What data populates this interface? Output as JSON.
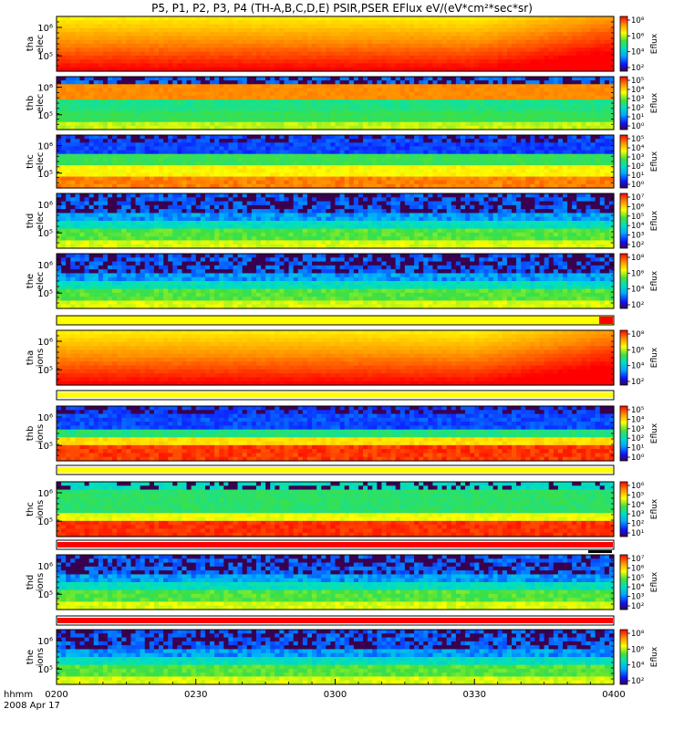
{
  "chart_data": {
    "type": "heatmap",
    "title": "P5, P1, P2, P3, P4 (TH-A,B,C,D,E) PSIR,PSER EFlux eV/(eV*cm²*sec*sr)",
    "x_ticks": [
      "0200",
      "0230",
      "0300",
      "0330",
      "0400"
    ],
    "x_label": "hhmm",
    "date_label": "2008 Apr 17",
    "colorbar_label": "Eflux",
    "panels": [
      {
        "id": "tha-elec",
        "label": [
          "tha",
          "elec"
        ],
        "y_ticks": [
          "10⁶",
          "10⁵"
        ],
        "cbar_ticks": [
          "10⁸",
          "10⁶",
          "10⁴",
          "10²"
        ],
        "style": "smooth",
        "strip": null
      },
      {
        "id": "thb-elec",
        "label": [
          "thb",
          "elec"
        ],
        "y_ticks": [
          "10⁶",
          "10⁵"
        ],
        "cbar_ticks": [
          "10⁵",
          "10⁴",
          "10³",
          "10²",
          "10¹",
          "10⁰"
        ],
        "style": "banded-orange",
        "strip": null
      },
      {
        "id": "thc-elec",
        "label": [
          "thc",
          "elec"
        ],
        "y_ticks": [
          "10⁶",
          "10⁵"
        ],
        "cbar_ticks": [
          "10⁵",
          "10⁴",
          "10³",
          "10²",
          "10¹",
          "10⁰"
        ],
        "style": "banded-blue",
        "strip": null
      },
      {
        "id": "thd-elec",
        "label": [
          "thd",
          "elec"
        ],
        "y_ticks": [
          "10⁶",
          "10⁵"
        ],
        "cbar_ticks": [
          "10⁷",
          "10⁶",
          "10⁵",
          "10⁴",
          "10³",
          "10²"
        ],
        "style": "noisy",
        "strip": null
      },
      {
        "id": "the-elec",
        "label": [
          "the",
          "elec"
        ],
        "y_ticks": [
          "10⁶",
          "10⁵"
        ],
        "cbar_ticks": [
          "10⁸",
          "10⁶",
          "10⁴",
          "10²"
        ],
        "style": "noisy",
        "strip": "yellow-red-end"
      },
      {
        "id": "tha-ions",
        "label": [
          "tha",
          "ions"
        ],
        "y_ticks": [
          "10⁶",
          "10⁵"
        ],
        "cbar_ticks": [
          "10⁸",
          "10⁶",
          "10⁴",
          "10²"
        ],
        "style": "smooth",
        "strip": "yellow"
      },
      {
        "id": "thb-ions",
        "label": [
          "thb",
          "ions"
        ],
        "y_ticks": [
          "10⁶",
          "10⁵"
        ],
        "cbar_ticks": [
          "10⁵",
          "10⁴",
          "10³",
          "10²",
          "10¹",
          "10⁰"
        ],
        "style": "ions-b",
        "strip": "yellow"
      },
      {
        "id": "thc-ions",
        "label": [
          "thc",
          "ions"
        ],
        "y_ticks": [
          "10⁶",
          "10⁵"
        ],
        "cbar_ticks": [
          "10⁶",
          "10⁵",
          "10⁴",
          "10³",
          "10²",
          "10¹"
        ],
        "style": "ions-c",
        "strip": "red"
      },
      {
        "id": "thd-ions",
        "label": [
          "thd",
          "ions"
        ],
        "y_ticks": [
          "10⁶",
          "10⁵"
        ],
        "cbar_ticks": [
          "10⁷",
          "10⁶",
          "10⁵",
          "10⁴",
          "10³",
          "10²"
        ],
        "style": "noisy",
        "strip": "red"
      },
      {
        "id": "the-ions",
        "label": [
          "the",
          "ions"
        ],
        "y_ticks": [
          "10⁶",
          "10⁵"
        ],
        "cbar_ticks": [
          "10⁸",
          "10⁶",
          "10⁴",
          "10²"
        ],
        "style": "noisy",
        "strip": null
      }
    ],
    "strip_colors": {
      "yellow": "#ffff00",
      "red": "#ff0000",
      "black": "#000000"
    }
  }
}
